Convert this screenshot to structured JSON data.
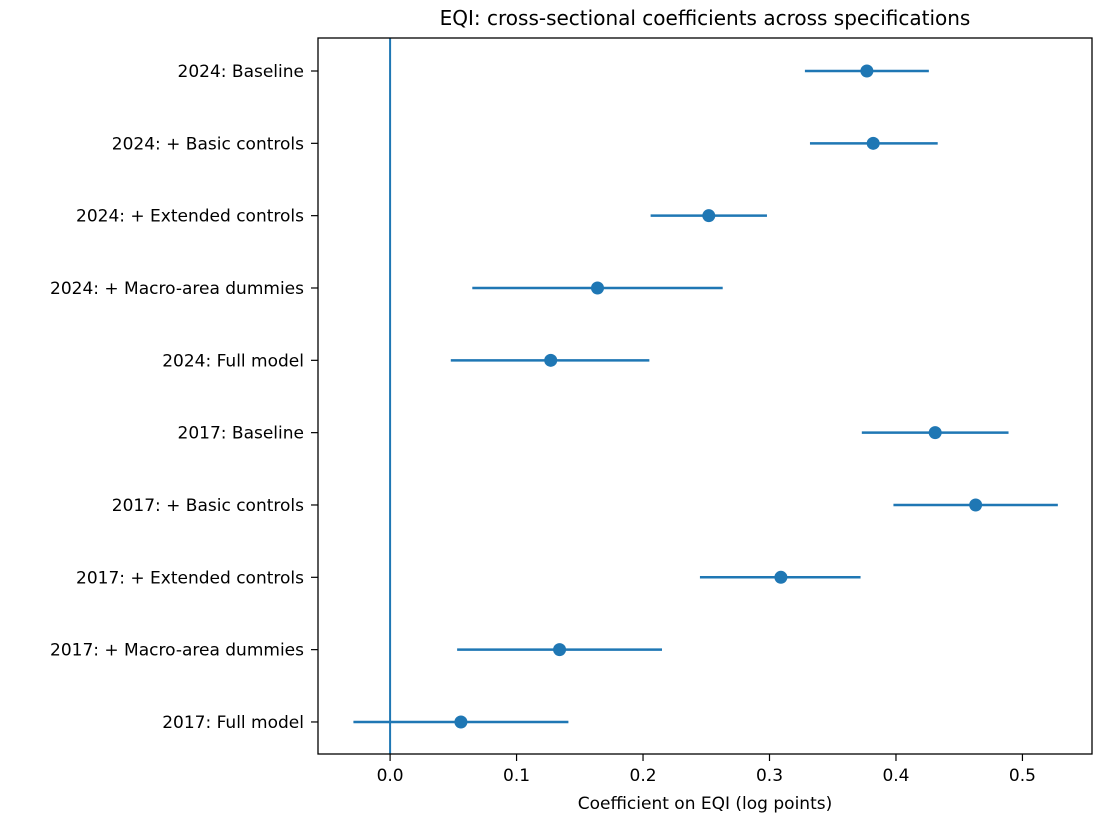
{
  "chart_data": {
    "type": "scatter",
    "title": "EQI: cross-sectional coefficients across specifications",
    "xlabel": "Coefficient on EQI (log points)",
    "ylabel": "",
    "xlim": [
      -0.057,
      0.555
    ],
    "xticks": [
      0.0,
      0.1,
      0.2,
      0.3,
      0.4,
      0.5
    ],
    "xtick_labels": [
      "0.0",
      "0.1",
      "0.2",
      "0.3",
      "0.4",
      "0.5"
    ],
    "reference_line_x": 0.0,
    "grid": false,
    "legend": "none",
    "color": "#1f77b4",
    "categories": [
      "2024: Baseline",
      "2024: + Basic controls",
      "2024: + Extended controls",
      "2024: + Macro-area dummies",
      "2024: Full model",
      "2017: Baseline",
      "2017: + Basic controls",
      "2017: + Extended controls",
      "2017: + Macro-area dummies",
      "2017: Full model"
    ],
    "values": [
      0.377,
      0.382,
      0.252,
      0.164,
      0.127,
      0.431,
      0.463,
      0.309,
      0.134,
      0.056
    ],
    "ci_low": [
      0.328,
      0.332,
      0.206,
      0.065,
      0.048,
      0.373,
      0.398,
      0.245,
      0.053,
      -0.029
    ],
    "ci_high": [
      0.426,
      0.433,
      0.298,
      0.263,
      0.205,
      0.489,
      0.528,
      0.372,
      0.215,
      0.141
    ]
  }
}
